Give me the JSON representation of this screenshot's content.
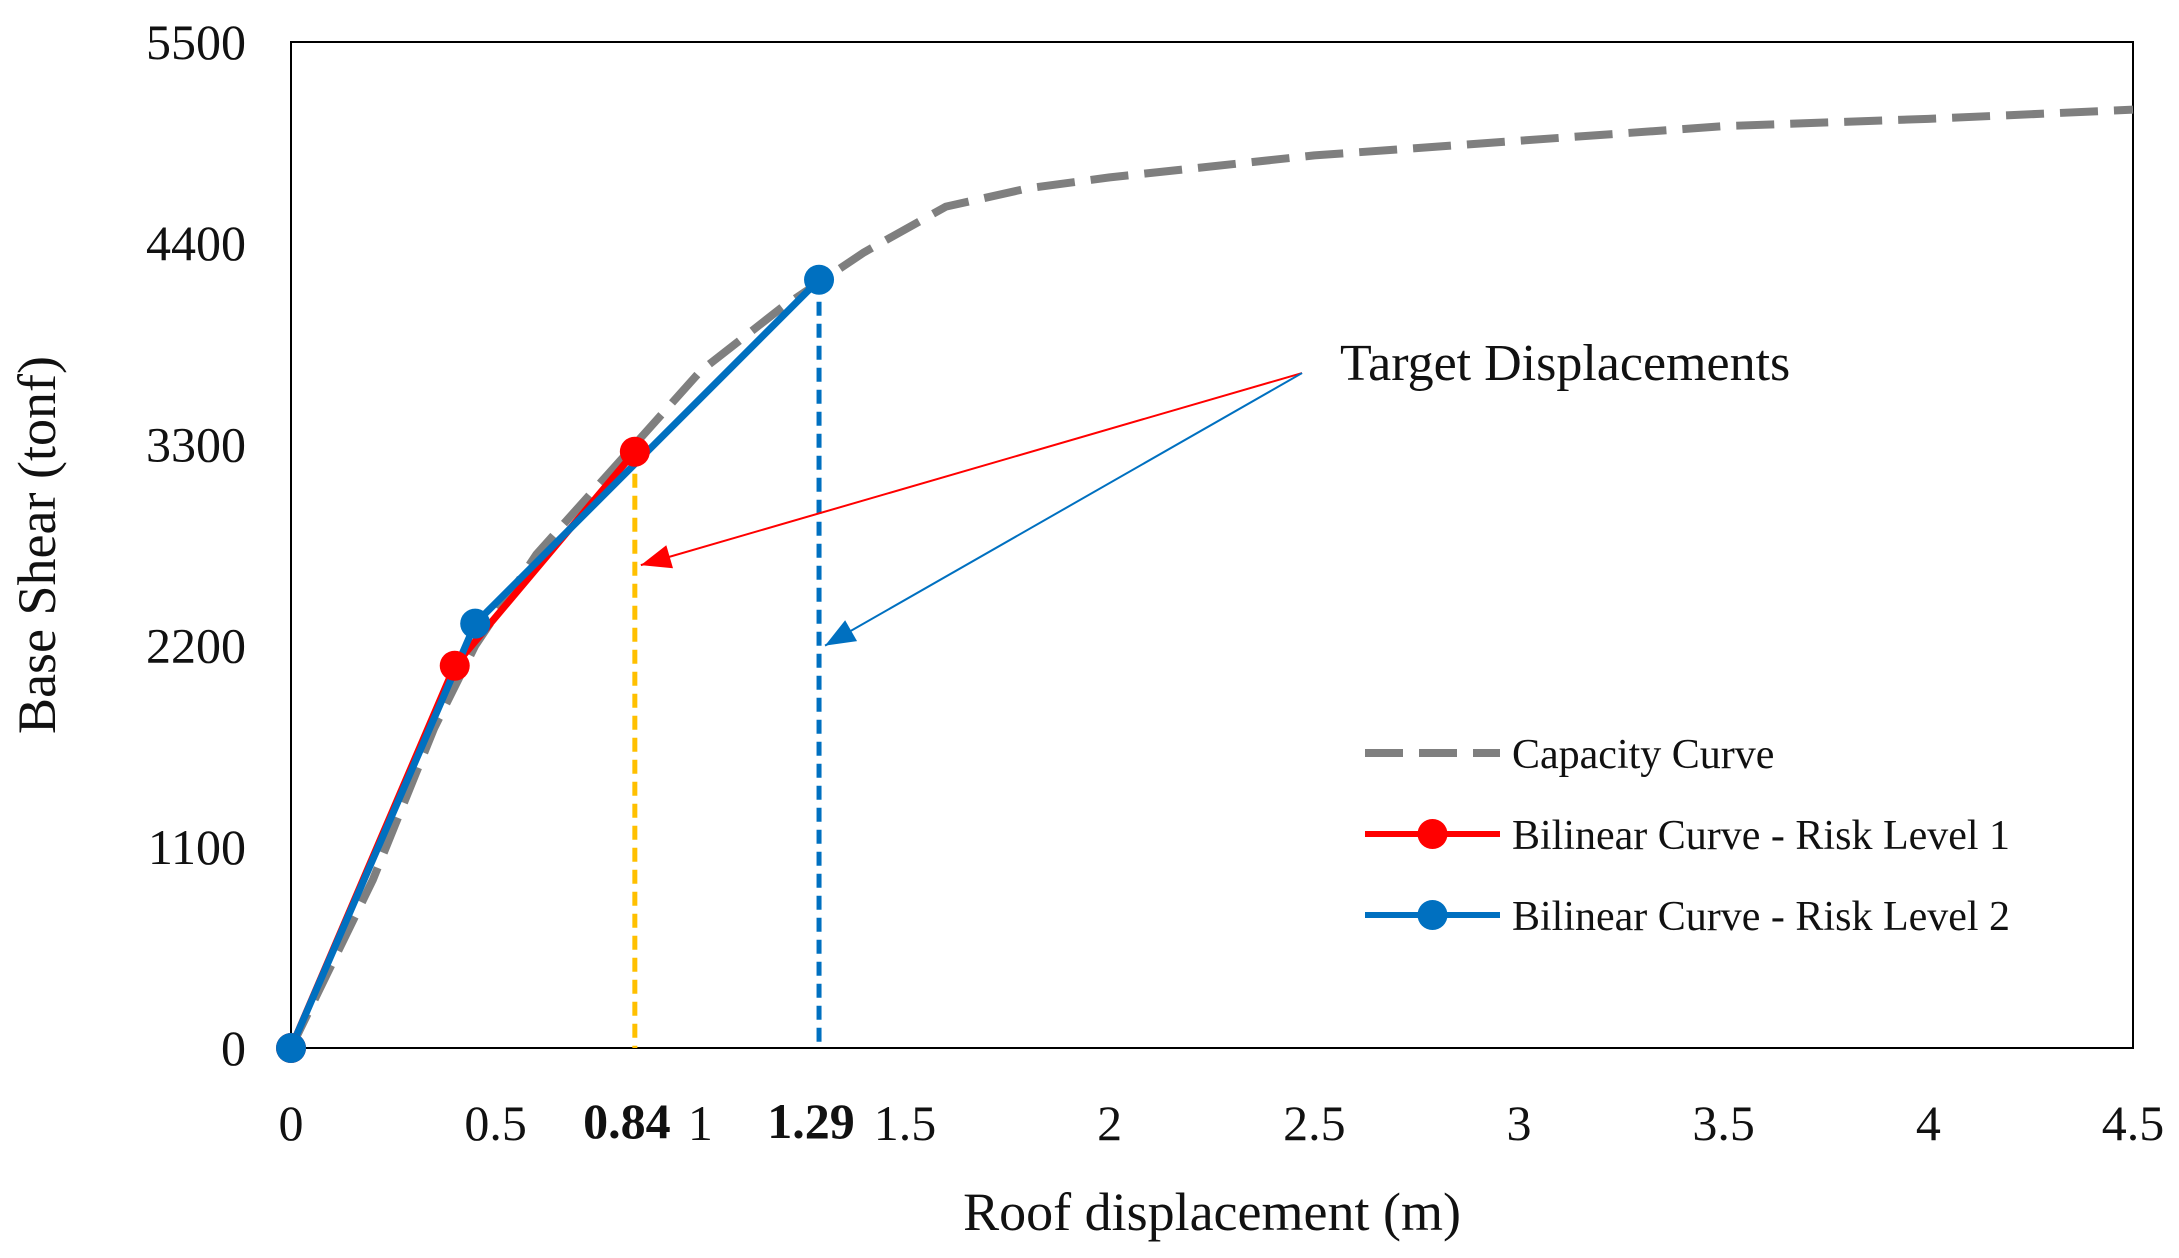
{
  "chart_data": {
    "type": "line",
    "xlabel": "Roof displacement (m)",
    "ylabel": "Base Shear (tonf)",
    "xlim": [
      0,
      4.5
    ],
    "ylim": [
      0,
      5500
    ],
    "x_ticks": [
      {
        "value": 0,
        "label": "0"
      },
      {
        "value": 0.5,
        "label": "0.5"
      },
      {
        "value": 1,
        "label": "1"
      },
      {
        "value": 1.5,
        "label": "1.5"
      },
      {
        "value": 2,
        "label": "2"
      },
      {
        "value": 2.5,
        "label": "2.5"
      },
      {
        "value": 3,
        "label": "3"
      },
      {
        "value": 3.5,
        "label": "3.5"
      },
      {
        "value": 4,
        "label": "4"
      },
      {
        "value": 4.5,
        "label": "4.5"
      }
    ],
    "x_bold_ticks": [
      {
        "value": 0.84,
        "label": "0.84"
      },
      {
        "value": 1.29,
        "label": "1.29"
      }
    ],
    "y_ticks": [
      {
        "value": 0,
        "label": "0"
      },
      {
        "value": 1100,
        "label": "1100"
      },
      {
        "value": 2200,
        "label": "2200"
      },
      {
        "value": 3300,
        "label": "3300"
      },
      {
        "value": 4400,
        "label": "4400"
      },
      {
        "value": 5500,
        "label": "5500"
      }
    ],
    "series": [
      {
        "name": "Capacity Curve",
        "color": "#7f7f7f",
        "style": "dashed",
        "x": [
          0,
          0.2,
          0.35,
          0.45,
          0.6,
          0.84,
          1.0,
          1.2,
          1.4,
          1.6,
          1.8,
          2.0,
          2.5,
          3.0,
          3.5,
          4.0,
          4.5
        ],
        "y": [
          0,
          920,
          1750,
          2200,
          2700,
          3300,
          3700,
          4050,
          4350,
          4600,
          4700,
          4760,
          4880,
          4960,
          5040,
          5080,
          5130
        ]
      },
      {
        "name": "Bilinear Curve - Risk Level 1",
        "color": "#ff0000",
        "style": "solid",
        "marker": "circle",
        "x": [
          0,
          0.4,
          0.84
        ],
        "y": [
          0,
          2090,
          3260
        ]
      },
      {
        "name": "Bilinear Curve - Risk Level 2",
        "color": "#0070c0",
        "style": "solid",
        "marker": "circle",
        "x": [
          0,
          0.45,
          1.29
        ],
        "y": [
          0,
          2320,
          4200
        ]
      }
    ],
    "target_lines": [
      {
        "x": 0.84,
        "y_top": 3260,
        "color": "#ffc000"
      },
      {
        "x": 1.29,
        "y_top": 4200,
        "color": "#0070c0"
      }
    ],
    "annotation": {
      "text": "Target Displacements",
      "anchor": {
        "x": 2.47,
        "y": 3690
      },
      "arrows": [
        {
          "color": "#ff0000",
          "to": {
            "x": 0.84,
            "y": 2640
          }
        },
        {
          "color": "#0070c0",
          "to": {
            "x": 1.29,
            "y": 2200
          }
        }
      ]
    },
    "legend": {
      "position": "bottom-right",
      "entries": [
        {
          "label": "Capacity Curve",
          "color": "#7f7f7f",
          "style": "dashed",
          "marker": "none"
        },
        {
          "label": "Bilinear Curve - Risk Level 1",
          "color": "#ff0000",
          "style": "solid",
          "marker": "circle"
        },
        {
          "label": "Bilinear Curve - Risk Level 2",
          "color": "#0070c0",
          "style": "solid",
          "marker": "circle"
        }
      ]
    }
  }
}
